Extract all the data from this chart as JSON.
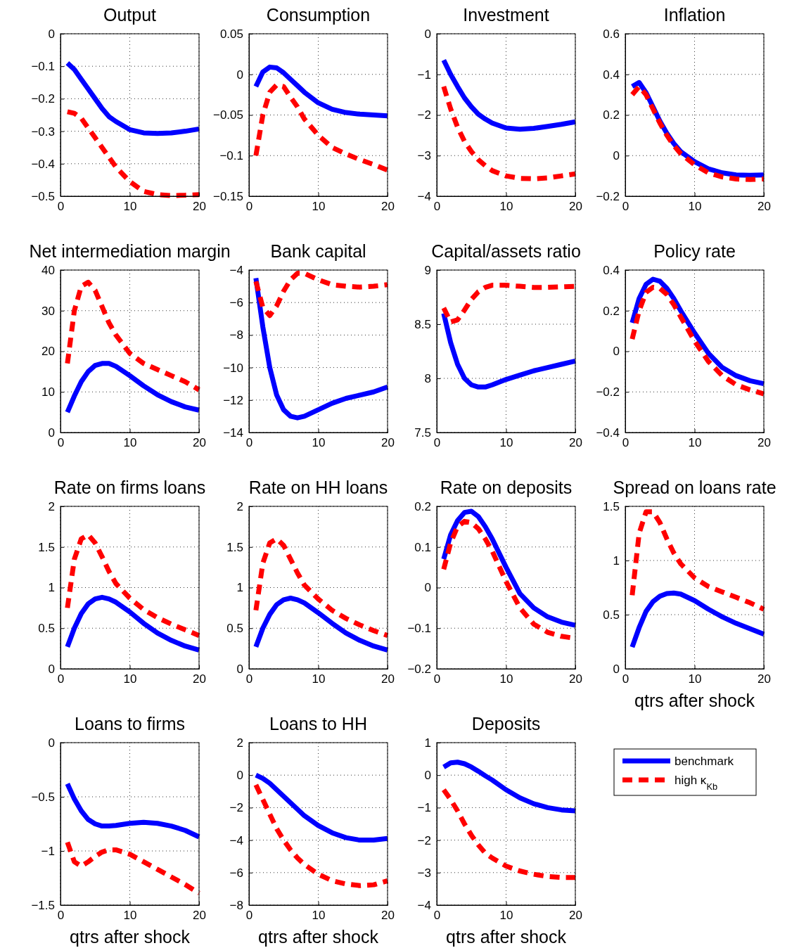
{
  "chart_data": [
    {
      "type": "line",
      "title": "Output",
      "x": [
        1,
        2,
        3,
        4,
        5,
        6,
        7,
        8,
        10,
        12,
        14,
        16,
        18,
        20
      ],
      "xlim": [
        0,
        20
      ],
      "xticks": [
        0,
        10,
        20
      ],
      "ylim": [
        -0.5,
        0
      ],
      "yticks": [
        -0.5,
        -0.4,
        -0.3,
        -0.2,
        -0.1,
        0
      ],
      "grid": true,
      "series": [
        {
          "color": "#0000ff",
          "line_style": "solid",
          "values": [
            -0.09,
            -0.11,
            -0.14,
            -0.17,
            -0.2,
            -0.23,
            -0.255,
            -0.27,
            -0.295,
            -0.305,
            -0.307,
            -0.305,
            -0.3,
            -0.293
          ]
        },
        {
          "color": "#ff0000",
          "line_style": "dashed",
          "values": [
            -0.24,
            -0.245,
            -0.26,
            -0.29,
            -0.32,
            -0.35,
            -0.38,
            -0.41,
            -0.455,
            -0.485,
            -0.495,
            -0.498,
            -0.497,
            -0.495
          ]
        }
      ]
    },
    {
      "type": "line",
      "title": "Consumption",
      "x": [
        1,
        2,
        3,
        4,
        5,
        6,
        7,
        8,
        10,
        12,
        14,
        16,
        18,
        20
      ],
      "xlim": [
        0,
        20
      ],
      "xticks": [
        0,
        10,
        20
      ],
      "ylim": [
        -0.15,
        0.05
      ],
      "yticks": [
        -0.15,
        -0.1,
        -0.05,
        0,
        0.05
      ],
      "grid": true,
      "series": [
        {
          "color": "#0000ff",
          "line_style": "solid",
          "values": [
            -0.015,
            0.003,
            0.009,
            0.008,
            0.002,
            -0.006,
            -0.014,
            -0.022,
            -0.035,
            -0.043,
            -0.047,
            -0.049,
            -0.05,
            -0.051
          ]
        },
        {
          "color": "#ff0000",
          "line_style": "dashed",
          "values": [
            -0.1,
            -0.05,
            -0.022,
            -0.013,
            -0.015,
            -0.028,
            -0.04,
            -0.055,
            -0.075,
            -0.09,
            -0.098,
            -0.105,
            -0.111,
            -0.118
          ]
        }
      ]
    },
    {
      "type": "line",
      "title": "Investment",
      "x": [
        1,
        2,
        3,
        4,
        5,
        6,
        7,
        8,
        10,
        12,
        14,
        16,
        18,
        20
      ],
      "xlim": [
        0,
        20
      ],
      "xticks": [
        0,
        10,
        20
      ],
      "ylim": [
        -4,
        0
      ],
      "yticks": [
        -4,
        -3,
        -2,
        -1,
        0
      ],
      "grid": true,
      "series": [
        {
          "color": "#0000ff",
          "line_style": "solid",
          "values": [
            -0.65,
            -1.0,
            -1.3,
            -1.58,
            -1.8,
            -1.98,
            -2.1,
            -2.2,
            -2.32,
            -2.35,
            -2.33,
            -2.28,
            -2.23,
            -2.17
          ]
        },
        {
          "color": "#ff0000",
          "line_style": "dashed",
          "values": [
            -1.3,
            -1.85,
            -2.3,
            -2.65,
            -2.9,
            -3.1,
            -3.25,
            -3.37,
            -3.5,
            -3.56,
            -3.57,
            -3.55,
            -3.5,
            -3.45
          ]
        }
      ]
    },
    {
      "type": "line",
      "title": "Inflation",
      "x": [
        1,
        2,
        3,
        4,
        5,
        6,
        7,
        8,
        10,
        12,
        14,
        16,
        18,
        20
      ],
      "xlim": [
        0,
        20
      ],
      "xticks": [
        0,
        10,
        20
      ],
      "ylim": [
        -0.2,
        0.6
      ],
      "yticks": [
        -0.2,
        0,
        0.2,
        0.4,
        0.6
      ],
      "grid": true,
      "series": [
        {
          "color": "#0000ff",
          "line_style": "solid",
          "values": [
            0.34,
            0.36,
            0.31,
            0.24,
            0.17,
            0.11,
            0.06,
            0.02,
            -0.03,
            -0.065,
            -0.085,
            -0.095,
            -0.097,
            -0.095
          ]
        },
        {
          "color": "#ff0000",
          "line_style": "dashed",
          "values": [
            0.3,
            0.34,
            0.3,
            0.23,
            0.16,
            0.1,
            0.05,
            0.01,
            -0.045,
            -0.085,
            -0.105,
            -0.115,
            -0.118,
            -0.115
          ]
        }
      ]
    },
    {
      "type": "line",
      "title": "Net intermediation margin",
      "x": [
        1,
        2,
        3,
        4,
        5,
        6,
        7,
        8,
        10,
        12,
        14,
        16,
        18,
        20
      ],
      "xlim": [
        0,
        20
      ],
      "xticks": [
        0,
        10,
        20
      ],
      "ylim": [
        0,
        40
      ],
      "yticks": [
        0,
        10,
        20,
        30,
        40
      ],
      "grid": true,
      "series": [
        {
          "color": "#0000ff",
          "line_style": "solid",
          "values": [
            5,
            9,
            12.5,
            15,
            16.5,
            17,
            17,
            16.3,
            14,
            11.5,
            9.3,
            7.6,
            6.3,
            5.5
          ]
        },
        {
          "color": "#ff0000",
          "line_style": "dashed",
          "values": [
            17,
            30,
            36,
            37,
            35,
            31,
            27,
            24,
            19.5,
            17,
            15.5,
            14,
            12.5,
            10.5
          ]
        }
      ]
    },
    {
      "type": "line",
      "title": "Bank capital",
      "x": [
        1,
        2,
        3,
        4,
        5,
        6,
        7,
        8,
        10,
        12,
        14,
        16,
        18,
        20
      ],
      "xlim": [
        0,
        20
      ],
      "xticks": [
        0,
        10,
        20
      ],
      "ylim": [
        -14,
        -4
      ],
      "yticks": [
        -14,
        -12,
        -10,
        -8,
        -6,
        -4
      ],
      "grid": true,
      "series": [
        {
          "color": "#0000ff",
          "line_style": "solid",
          "values": [
            -4.5,
            -7.5,
            -10,
            -11.7,
            -12.6,
            -13,
            -13.1,
            -13,
            -12.6,
            -12.2,
            -11.9,
            -11.7,
            -11.5,
            -11.2
          ]
        },
        {
          "color": "#ff0000",
          "line_style": "dashed",
          "values": [
            -4.7,
            -6.3,
            -6.8,
            -6.2,
            -5.3,
            -4.6,
            -4.2,
            -4.2,
            -4.6,
            -4.9,
            -5.0,
            -5.05,
            -5.0,
            -4.9
          ]
        }
      ]
    },
    {
      "type": "line",
      "title": "Capital/assets ratio",
      "x": [
        1,
        2,
        3,
        4,
        5,
        6,
        7,
        8,
        10,
        12,
        14,
        16,
        18,
        20
      ],
      "xlim": [
        0,
        20
      ],
      "xticks": [
        0,
        10,
        20
      ],
      "ylim": [
        7.5,
        9
      ],
      "yticks": [
        7.5,
        8,
        8.5,
        9
      ],
      "grid": true,
      "series": [
        {
          "color": "#0000ff",
          "line_style": "solid",
          "values": [
            8.6,
            8.33,
            8.13,
            8.0,
            7.94,
            7.92,
            7.92,
            7.94,
            7.99,
            8.03,
            8.07,
            8.1,
            8.13,
            8.16
          ]
        },
        {
          "color": "#ff0000",
          "line_style": "dashed",
          "values": [
            8.65,
            8.52,
            8.54,
            8.63,
            8.73,
            8.8,
            8.84,
            8.86,
            8.86,
            8.85,
            8.84,
            8.84,
            8.845,
            8.85
          ]
        }
      ]
    },
    {
      "type": "line",
      "title": "Policy rate",
      "x": [
        1,
        2,
        3,
        4,
        5,
        6,
        7,
        8,
        10,
        12,
        14,
        16,
        18,
        20
      ],
      "xlim": [
        0,
        20
      ],
      "xticks": [
        0,
        10,
        20
      ],
      "ylim": [
        -0.4,
        0.4
      ],
      "yticks": [
        -0.4,
        -0.2,
        0,
        0.2,
        0.4
      ],
      "grid": true,
      "series": [
        {
          "color": "#0000ff",
          "line_style": "solid",
          "values": [
            0.14,
            0.26,
            0.33,
            0.355,
            0.345,
            0.31,
            0.26,
            0.2,
            0.09,
            -0.01,
            -0.08,
            -0.12,
            -0.145,
            -0.16
          ]
        },
        {
          "color": "#ff0000",
          "line_style": "dashed",
          "values": [
            0.06,
            0.2,
            0.29,
            0.315,
            0.31,
            0.28,
            0.23,
            0.17,
            0.05,
            -0.05,
            -0.12,
            -0.165,
            -0.19,
            -0.21
          ]
        }
      ]
    },
    {
      "type": "line",
      "title": "Rate on firms loans",
      "x": [
        1,
        2,
        3,
        4,
        5,
        6,
        7,
        8,
        10,
        12,
        14,
        16,
        18,
        20
      ],
      "xlim": [
        0,
        20
      ],
      "xticks": [
        0,
        10,
        20
      ],
      "ylim": [
        0,
        2
      ],
      "yticks": [
        0,
        0.5,
        1,
        1.5,
        2
      ],
      "grid": true,
      "series": [
        {
          "color": "#0000ff",
          "line_style": "solid",
          "values": [
            0.27,
            0.5,
            0.68,
            0.8,
            0.86,
            0.88,
            0.86,
            0.82,
            0.7,
            0.56,
            0.44,
            0.35,
            0.28,
            0.23
          ]
        },
        {
          "color": "#ff0000",
          "line_style": "dashed",
          "values": [
            0.75,
            1.35,
            1.6,
            1.65,
            1.55,
            1.38,
            1.2,
            1.05,
            0.87,
            0.73,
            0.63,
            0.55,
            0.48,
            0.41
          ]
        }
      ]
    },
    {
      "type": "line",
      "title": "Rate on HH loans",
      "x": [
        1,
        2,
        3,
        4,
        5,
        6,
        7,
        8,
        10,
        12,
        14,
        16,
        18,
        20
      ],
      "xlim": [
        0,
        20
      ],
      "xticks": [
        0,
        10,
        20
      ],
      "ylim": [
        0,
        2
      ],
      "yticks": [
        0,
        0.5,
        1,
        1.5,
        2
      ],
      "grid": true,
      "series": [
        {
          "color": "#0000ff",
          "line_style": "solid",
          "values": [
            0.27,
            0.5,
            0.67,
            0.79,
            0.85,
            0.87,
            0.85,
            0.81,
            0.69,
            0.56,
            0.44,
            0.35,
            0.28,
            0.23
          ]
        },
        {
          "color": "#ff0000",
          "line_style": "dashed",
          "values": [
            0.72,
            1.3,
            1.55,
            1.6,
            1.52,
            1.35,
            1.18,
            1.03,
            0.86,
            0.72,
            0.62,
            0.54,
            0.47,
            0.41
          ]
        }
      ]
    },
    {
      "type": "line",
      "title": "Rate on deposits",
      "x": [
        1,
        2,
        3,
        4,
        5,
        6,
        7,
        8,
        10,
        12,
        14,
        16,
        18,
        20
      ],
      "xlim": [
        0,
        20
      ],
      "xticks": [
        0,
        10,
        20
      ],
      "ylim": [
        -0.2,
        0.2
      ],
      "yticks": [
        -0.2,
        -0.1,
        0,
        0.1,
        0.2
      ],
      "grid": true,
      "series": [
        {
          "color": "#0000ff",
          "line_style": "solid",
          "values": [
            0.07,
            0.13,
            0.165,
            0.185,
            0.188,
            0.175,
            0.15,
            0.12,
            0.05,
            -0.015,
            -0.05,
            -0.072,
            -0.085,
            -0.093
          ]
        },
        {
          "color": "#ff0000",
          "line_style": "dashed",
          "values": [
            0.045,
            0.11,
            0.15,
            0.163,
            0.16,
            0.145,
            0.12,
            0.09,
            0.015,
            -0.05,
            -0.09,
            -0.11,
            -0.12,
            -0.125
          ]
        }
      ]
    },
    {
      "type": "line",
      "title": "Spread on loans rate",
      "xlabel": "qtrs after shock",
      "x": [
        1,
        2,
        3,
        4,
        5,
        6,
        7,
        8,
        10,
        12,
        14,
        16,
        18,
        20
      ],
      "xlim": [
        0,
        20
      ],
      "xticks": [
        0,
        10,
        20
      ],
      "ylim": [
        0,
        1.5
      ],
      "yticks": [
        0,
        0.5,
        1,
        1.5
      ],
      "grid": true,
      "series": [
        {
          "color": "#0000ff",
          "line_style": "solid",
          "values": [
            0.2,
            0.38,
            0.53,
            0.62,
            0.67,
            0.695,
            0.7,
            0.69,
            0.63,
            0.55,
            0.48,
            0.42,
            0.37,
            0.32
          ]
        },
        {
          "color": "#ff0000",
          "line_style": "dashed",
          "values": [
            0.68,
            1.25,
            1.45,
            1.45,
            1.35,
            1.2,
            1.07,
            0.97,
            0.84,
            0.76,
            0.71,
            0.66,
            0.61,
            0.55
          ]
        }
      ]
    },
    {
      "type": "line",
      "title": "Loans to firms",
      "xlabel": "qtrs after shock",
      "x": [
        1,
        2,
        3,
        4,
        5,
        6,
        7,
        8,
        10,
        12,
        14,
        16,
        18,
        20
      ],
      "xlim": [
        0,
        20
      ],
      "xticks": [
        0,
        10,
        20
      ],
      "ylim": [
        -1.5,
        0
      ],
      "yticks": [
        -1.5,
        -1,
        -0.5,
        0
      ],
      "grid": true,
      "series": [
        {
          "color": "#0000ff",
          "line_style": "solid",
          "values": [
            -0.38,
            -0.52,
            -0.63,
            -0.71,
            -0.75,
            -0.77,
            -0.77,
            -0.765,
            -0.745,
            -0.735,
            -0.745,
            -0.77,
            -0.81,
            -0.87
          ]
        },
        {
          "color": "#ff0000",
          "line_style": "dashed",
          "values": [
            -0.92,
            -1.1,
            -1.14,
            -1.1,
            -1.05,
            -1.01,
            -0.99,
            -0.99,
            -1.03,
            -1.1,
            -1.17,
            -1.24,
            -1.31,
            -1.39
          ]
        }
      ]
    },
    {
      "type": "line",
      "title": "Loans to HH",
      "xlabel": "qtrs after shock",
      "x": [
        1,
        2,
        3,
        4,
        5,
        6,
        7,
        8,
        10,
        12,
        14,
        16,
        18,
        20
      ],
      "xlim": [
        0,
        20
      ],
      "xticks": [
        0,
        10,
        20
      ],
      "ylim": [
        -8,
        2
      ],
      "yticks": [
        -8,
        -6,
        -4,
        -2,
        0,
        2
      ],
      "grid": true,
      "series": [
        {
          "color": "#0000ff",
          "line_style": "solid",
          "values": [
            0,
            -0.2,
            -0.5,
            -0.9,
            -1.3,
            -1.7,
            -2.1,
            -2.5,
            -3.1,
            -3.55,
            -3.85,
            -4.0,
            -4.0,
            -3.9
          ]
        },
        {
          "color": "#ff0000",
          "line_style": "dashed",
          "values": [
            -0.6,
            -1.5,
            -2.4,
            -3.3,
            -4.0,
            -4.6,
            -5.1,
            -5.5,
            -6.1,
            -6.5,
            -6.7,
            -6.8,
            -6.75,
            -6.5
          ]
        }
      ]
    },
    {
      "type": "line",
      "title": "Deposits",
      "xlabel": "qtrs after shock",
      "x": [
        1,
        2,
        3,
        4,
        5,
        6,
        7,
        8,
        10,
        12,
        14,
        16,
        18,
        20
      ],
      "xlim": [
        0,
        20
      ],
      "xticks": [
        0,
        10,
        20
      ],
      "ylim": [
        -4,
        1
      ],
      "yticks": [
        -4,
        -3,
        -2,
        -1,
        0,
        1
      ],
      "grid": true,
      "legend": "right",
      "series": [
        {
          "name": "benchmark",
          "color": "#0000ff",
          "line_style": "solid",
          "values": [
            0.25,
            0.38,
            0.4,
            0.35,
            0.25,
            0.12,
            -0.02,
            -0.15,
            -0.45,
            -0.7,
            -0.88,
            -1.0,
            -1.07,
            -1.1
          ]
        },
        {
          "name": "high κ$_{Kb}$",
          "color": "#ff0000",
          "line_style": "dashed",
          "values": [
            -0.45,
            -0.75,
            -1.1,
            -1.5,
            -1.85,
            -2.15,
            -2.4,
            -2.55,
            -2.8,
            -2.95,
            -3.05,
            -3.12,
            -3.15,
            -3.15
          ]
        }
      ]
    }
  ]
}
